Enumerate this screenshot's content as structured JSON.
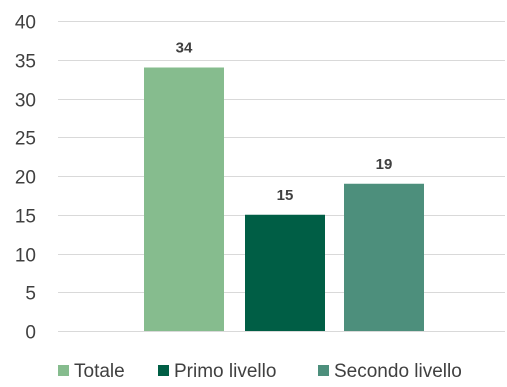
{
  "chart_data": {
    "type": "bar",
    "title": "",
    "xlabel": "",
    "ylabel": "",
    "ylim": [
      0,
      40
    ],
    "yticks": [
      0,
      5,
      10,
      15,
      20,
      25,
      30,
      35,
      40
    ],
    "grid": true,
    "legend_position": "bottom",
    "bars": [
      {
        "name": "Totale",
        "value": 34,
        "color": "#86bc8e"
      },
      {
        "name": "Primo livello",
        "value": 15,
        "color": "#005e45"
      },
      {
        "name": "Secondo livello",
        "value": 19,
        "color": "#4d8f7c"
      }
    ]
  }
}
